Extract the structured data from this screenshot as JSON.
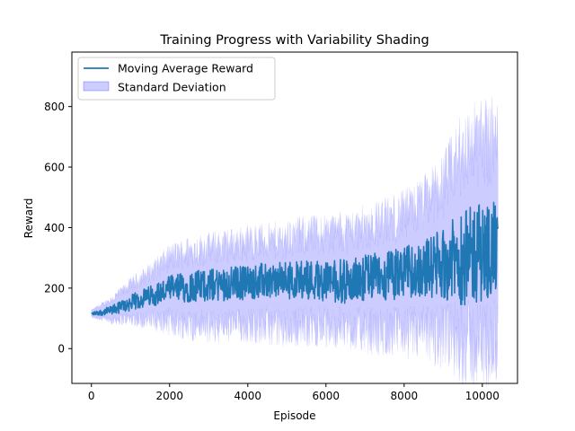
{
  "chart_data": {
    "type": "line",
    "title": "Training Progress with Variability Shading",
    "xlabel": "Episode",
    "ylabel": "Reward",
    "xlim": [
      -500,
      10900
    ],
    "ylim": [
      -115,
      980
    ],
    "x_ticks": [
      0,
      2000,
      4000,
      6000,
      8000,
      10000
    ],
    "y_ticks": [
      0,
      200,
      400,
      600,
      800
    ],
    "x_tick_labels": [
      "0",
      "2000",
      "4000",
      "6000",
      "8000",
      "10000"
    ],
    "y_tick_labels": [
      "0",
      "200",
      "400",
      "600",
      "800"
    ],
    "grid": false,
    "legend_position": "top-left",
    "series": [
      {
        "name": "Moving Average Reward",
        "kind": "line",
        "color": "#1f77b4",
        "x": [
          0,
          500,
          1000,
          1500,
          2000,
          2500,
          3000,
          3500,
          4000,
          4500,
          5000,
          5500,
          6000,
          6500,
          7000,
          7500,
          8000,
          8500,
          9000,
          9500,
          10000,
          10400
        ],
        "values": [
          115,
          125,
          150,
          175,
          195,
          205,
          210,
          215,
          220,
          225,
          225,
          230,
          225,
          220,
          235,
          240,
          250,
          265,
          280,
          300,
          320,
          330
        ]
      },
      {
        "name": "Standard Deviation",
        "kind": "band",
        "color": "#0000ff",
        "x": [
          0,
          500,
          1000,
          1500,
          2000,
          2500,
          3000,
          3500,
          4000,
          4500,
          5000,
          5500,
          6000,
          6500,
          7000,
          7500,
          8000,
          8500,
          9000,
          9500,
          10000,
          10400
        ],
        "lower": [
          105,
          95,
          100,
          95,
          90,
          80,
          75,
          75,
          80,
          75,
          70,
          75,
          70,
          70,
          60,
          55,
          55,
          50,
          40,
          20,
          10,
          20
        ],
        "upper": [
          125,
          160,
          210,
          250,
          300,
          320,
          330,
          340,
          350,
          355,
          360,
          375,
          380,
          385,
          400,
          420,
          440,
          480,
          540,
          650,
          690,
          680
        ]
      }
    ]
  }
}
